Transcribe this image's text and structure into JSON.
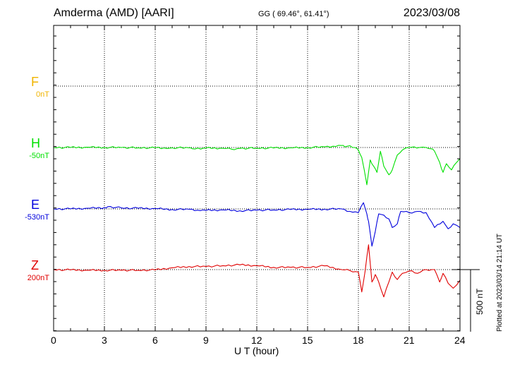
{
  "header": {
    "station": "Amderma (AMD)  [AARI]",
    "coords": "GG ( 69.46°,  61.41°)",
    "date": "2023/03/08"
  },
  "plotted_note": "Plotted at 2023/03/14 21:14 UT",
  "scale_label": "500 nT",
  "chart_data": {
    "type": "line",
    "title": "Amderma (AMD)  [AARI]",
    "xlabel": "U T (hour)",
    "ylabel": "",
    "xlim": [
      0,
      24
    ],
    "xticks": [
      0,
      3,
      6,
      9,
      12,
      15,
      18,
      21,
      24
    ],
    "grid": true,
    "scale_bar_nT": 500,
    "series": [
      {
        "name": "F",
        "baseline": "0nT",
        "color": "#f0b400",
        "x": [],
        "values": []
      },
      {
        "name": "H",
        "baseline": "-50nT",
        "color": "#00e000",
        "x": [
          0,
          1,
          2,
          3,
          4,
          5,
          6,
          6.7,
          7,
          8,
          8.2,
          9,
          10,
          10.5,
          11,
          12,
          13,
          14,
          15,
          16,
          16.5,
          17,
          17.2,
          17.5,
          17.8,
          18,
          18.2,
          18.5,
          18.7,
          18.9,
          19.1,
          19.3,
          19.5,
          19.8,
          20,
          20.3,
          20.6,
          21,
          21.3,
          21.6,
          22,
          22.3,
          22.5,
          22.8,
          23,
          23.2,
          23.5,
          23.8,
          24
        ],
        "values": [
          0,
          0,
          2,
          1,
          0,
          -2,
          -3,
          -8,
          -2,
          -3,
          -10,
          -4,
          -6,
          -13,
          -7,
          -5,
          -4,
          -3,
          0,
          5,
          10,
          16,
          5,
          15,
          0,
          -20,
          -80,
          -300,
          -100,
          -150,
          -200,
          -30,
          -150,
          -220,
          -180,
          -60,
          -20,
          0,
          5,
          0,
          0,
          -10,
          -30,
          -120,
          -200,
          -130,
          -180,
          -120,
          -90
        ]
      },
      {
        "name": "E",
        "baseline": "-530nT",
        "color": "#0000dd",
        "x": [
          0,
          1,
          2,
          3,
          3.2,
          4,
          5,
          6,
          7,
          8,
          8.5,
          9,
          10,
          11,
          12,
          13,
          14,
          15,
          16,
          17,
          17.5,
          18,
          18.3,
          18.5,
          18.6,
          18.8,
          19,
          19.2,
          19.5,
          19.8,
          20,
          20.3,
          20.5,
          21,
          21.5,
          22,
          22.5,
          23,
          23.3,
          23.6,
          24
        ],
        "values": [
          0,
          0,
          5,
          10,
          18,
          8,
          5,
          3,
          -5,
          -3,
          -10,
          -12,
          -8,
          -15,
          -10,
          -8,
          -5,
          -3,
          -2,
          0,
          -20,
          -30,
          50,
          -40,
          -100,
          -300,
          -180,
          -40,
          -50,
          -80,
          -150,
          -120,
          -20,
          -30,
          -20,
          -30,
          -150,
          -100,
          -160,
          -120,
          -150
        ]
      },
      {
        "name": "Z",
        "baseline": "200nT",
        "color": "#e00000",
        "x": [
          0,
          1,
          2,
          3,
          4,
          5,
          6,
          7,
          8,
          9,
          10,
          11,
          12,
          13,
          14,
          15,
          16,
          17,
          17.5,
          18,
          18.2,
          18.4,
          18.6,
          18.8,
          19,
          19.2,
          19.5,
          19.8,
          20,
          20.3,
          20.6,
          21,
          21.5,
          22,
          22.5,
          22.8,
          23,
          23.3,
          23.6,
          24
        ],
        "values": [
          0,
          -3,
          -5,
          -5,
          -5,
          -5,
          -3,
          15,
          25,
          25,
          32,
          38,
          32,
          18,
          18,
          18,
          30,
          0,
          -8,
          -20,
          -180,
          -10,
          200,
          -100,
          -40,
          -100,
          -220,
          -100,
          -20,
          -80,
          -30,
          -10,
          -30,
          0,
          0,
          -100,
          -30,
          -110,
          -150,
          -85
        ]
      }
    ]
  }
}
